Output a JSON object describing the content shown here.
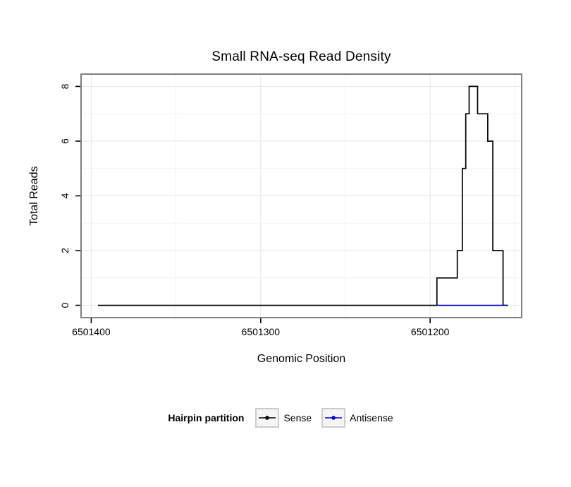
{
  "chart_data": {
    "type": "line",
    "title": "Small RNA-seq Read Density",
    "xlabel": "Genomic Position",
    "ylabel": "Total Reads",
    "axes": {
      "xlim": [
        6501406,
        6501146
      ],
      "ylim": [
        -0.45,
        8.45
      ],
      "x_ticks": [
        6501400,
        6501300,
        6501200
      ],
      "y_ticks": [
        0,
        2,
        4,
        6,
        8
      ],
      "x_minor": [
        6501350,
        6501250,
        6501150
      ],
      "y_minor": [
        1,
        3,
        5,
        7
      ],
      "x_reversed": true,
      "grid": true
    },
    "legend": {
      "title": "Hairpin partition",
      "position": "bottom"
    },
    "series": [
      {
        "name": "Sense",
        "color": "#000000",
        "points": [
          [
            6501396,
            0
          ],
          [
            6501196,
            0
          ],
          [
            6501196,
            1
          ],
          [
            6501184,
            1
          ],
          [
            6501184,
            2
          ],
          [
            6501181,
            2
          ],
          [
            6501181,
            5
          ],
          [
            6501179,
            5
          ],
          [
            6501179,
            7
          ],
          [
            6501177,
            7
          ],
          [
            6501177,
            8
          ],
          [
            6501172,
            8
          ],
          [
            6501172,
            7
          ],
          [
            6501166,
            7
          ],
          [
            6501166,
            6
          ],
          [
            6501163,
            6
          ],
          [
            6501163,
            2
          ],
          [
            6501157,
            2
          ],
          [
            6501157,
            0
          ],
          [
            6501154,
            0
          ]
        ]
      },
      {
        "name": "Antisense",
        "color": "#0000cd",
        "points": [
          [
            6501196,
            0
          ],
          [
            6501155,
            0
          ]
        ]
      }
    ],
    "style": {
      "panel_border_color": "#7f7f7f",
      "grid_major_color": "#e7e7e7",
      "grid_minor_color": "#f3f3f3",
      "tick_color": "#000000"
    }
  }
}
